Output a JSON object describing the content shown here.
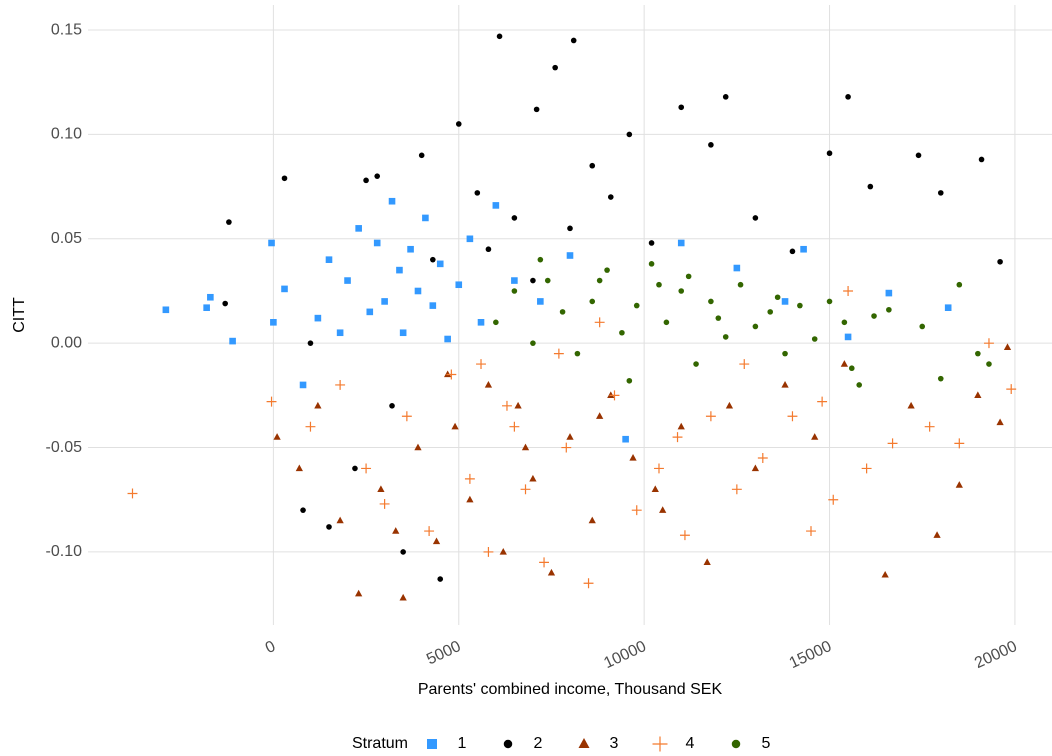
{
  "chart_data": {
    "type": "scatter",
    "x_label": "Parents' combined income, Thousand SEK",
    "y_label": "CITT",
    "legend_title": "Stratum",
    "legend_position": "bottom",
    "grid": true,
    "xlim": [
      -5000,
      21000
    ],
    "ylim": [
      -0.135,
      0.162
    ],
    "xticks": [
      0,
      5000,
      10000,
      15000,
      20000
    ],
    "yticks": [
      {
        "value": 0.15,
        "label": "0.15"
      },
      {
        "value": 0.1,
        "label": "0.10"
      },
      {
        "value": 0.05,
        "label": "0.05"
      },
      {
        "value": 0,
        "label": "0.00"
      },
      {
        "value": -0.05,
        "label": "-0.05"
      },
      {
        "value": -0.1,
        "label": "-0.10"
      }
    ],
    "series": [
      {
        "name": "1",
        "color": "#3399ff",
        "shape": "square",
        "x": [
          -2900,
          -1800,
          -1700,
          -1100,
          -50,
          0,
          300,
          800,
          1200,
          1500,
          1800,
          2000,
          2300,
          2600,
          2800,
          3000,
          3200,
          3400,
          3500,
          3700,
          3900,
          4100,
          4300,
          4500,
          4700,
          5000,
          5300,
          5600,
          6000,
          6500,
          7200,
          8000,
          9500,
          11000,
          12500,
          13800,
          14300,
          15500,
          16600,
          18200
        ],
        "values": [
          0.016,
          0.017,
          0.022,
          0.001,
          0.048,
          0.01,
          0.026,
          -0.02,
          0.012,
          0.04,
          0.005,
          0.03,
          0.055,
          0.015,
          0.048,
          0.02,
          0.068,
          0.035,
          0.005,
          0.045,
          0.025,
          0.06,
          0.018,
          0.038,
          0.002,
          0.028,
          0.05,
          0.01,
          0.066,
          0.03,
          0.02,
          0.042,
          -0.046,
          0.048,
          0.036,
          0.02,
          0.045,
          0.003,
          0.024,
          0.017
        ]
      },
      {
        "name": "2",
        "color": "#000000",
        "shape": "circle",
        "x": [
          300,
          -1200,
          -1300,
          800,
          1500,
          2200,
          2800,
          3500,
          4000,
          4500,
          5000,
          5500,
          6100,
          6500,
          7100,
          7600,
          8100,
          8600,
          9100,
          9600,
          10200,
          11000,
          11800,
          12200,
          13000,
          14000,
          15000,
          15500,
          16100,
          17400,
          18000,
          19100,
          19600,
          2500,
          3200,
          1000,
          4300,
          5800,
          7000,
          8000
        ],
        "values": [
          0.079,
          0.058,
          0.019,
          -0.08,
          -0.088,
          -0.06,
          0.08,
          -0.1,
          0.09,
          -0.113,
          0.105,
          0.072,
          0.147,
          0.06,
          0.112,
          0.132,
          0.145,
          0.085,
          0.07,
          0.1,
          0.048,
          0.113,
          0.095,
          0.118,
          0.06,
          0.044,
          0.091,
          0.118,
          0.075,
          0.09,
          0.072,
          0.088,
          0.039,
          0.078,
          -0.03,
          0.0,
          0.04,
          0.045,
          0.03,
          0.055
        ]
      },
      {
        "name": "3",
        "color": "#993300",
        "shape": "triangle",
        "x": [
          100,
          700,
          1200,
          1800,
          2300,
          2900,
          3500,
          3900,
          4400,
          4900,
          5300,
          5800,
          6200,
          6600,
          7000,
          7500,
          8000,
          8600,
          9100,
          9700,
          10300,
          11000,
          11700,
          12300,
          13000,
          13800,
          14600,
          15400,
          16500,
          17200,
          17900,
          18500,
          19000,
          19600,
          19800,
          3300,
          4700,
          6800,
          8800,
          10500
        ],
        "values": [
          -0.045,
          -0.06,
          -0.03,
          -0.085,
          -0.12,
          -0.07,
          -0.122,
          -0.05,
          -0.095,
          -0.04,
          -0.075,
          -0.02,
          -0.1,
          -0.03,
          -0.065,
          -0.11,
          -0.045,
          -0.085,
          -0.025,
          -0.055,
          -0.07,
          -0.04,
          -0.105,
          -0.03,
          -0.06,
          -0.02,
          -0.045,
          -0.01,
          -0.111,
          -0.03,
          -0.092,
          -0.068,
          -0.025,
          -0.038,
          -0.002,
          -0.09,
          -0.015,
          -0.05,
          -0.035,
          -0.08
        ]
      },
      {
        "name": "4",
        "color": "#f47a2e",
        "shape": "plus",
        "x": [
          -3800,
          -50,
          1000,
          1800,
          2500,
          3000,
          3600,
          4200,
          4800,
          5300,
          5800,
          6300,
          6800,
          7300,
          7900,
          8500,
          9200,
          9800,
          10400,
          11100,
          11800,
          12500,
          13200,
          14000,
          14500,
          15100,
          15500,
          16000,
          16700,
          17700,
          18500,
          19300,
          19900,
          5600,
          7700,
          8800,
          10900,
          12700,
          14800,
          6500
        ],
        "values": [
          -0.072,
          -0.028,
          -0.04,
          -0.02,
          -0.06,
          -0.077,
          -0.035,
          -0.09,
          -0.015,
          -0.065,
          -0.1,
          -0.03,
          -0.07,
          -0.105,
          -0.05,
          -0.115,
          -0.025,
          -0.08,
          -0.06,
          -0.092,
          -0.035,
          -0.07,
          -0.055,
          -0.035,
          -0.09,
          -0.075,
          0.025,
          -0.06,
          -0.048,
          -0.04,
          -0.048,
          0.0,
          -0.022,
          -0.01,
          -0.005,
          0.01,
          -0.045,
          -0.01,
          -0.028,
          -0.04
        ]
      },
      {
        "name": "5",
        "color": "#336600",
        "shape": "circle",
        "x": [
          6000,
          6500,
          7000,
          7400,
          7800,
          8200,
          8600,
          9000,
          9400,
          9800,
          10200,
          10600,
          11000,
          11400,
          11800,
          12200,
          12600,
          13000,
          13400,
          13800,
          14200,
          14600,
          15000,
          15400,
          15800,
          16200,
          16600,
          17500,
          18000,
          18500,
          19000,
          19300,
          7200,
          8800,
          10400,
          12000,
          13600,
          15600,
          9600,
          11200
        ],
        "values": [
          0.01,
          0.025,
          0.0,
          0.03,
          0.015,
          -0.005,
          0.02,
          0.035,
          0.005,
          0.018,
          0.038,
          0.01,
          0.025,
          -0.01,
          0.02,
          0.003,
          0.028,
          0.008,
          0.015,
          -0.005,
          0.018,
          0.002,
          0.02,
          0.01,
          -0.02,
          0.013,
          0.016,
          0.008,
          -0.017,
          0.028,
          -0.005,
          -0.01,
          0.04,
          0.03,
          0.028,
          0.012,
          0.022,
          -0.012,
          -0.018,
          0.032
        ]
      }
    ]
  }
}
